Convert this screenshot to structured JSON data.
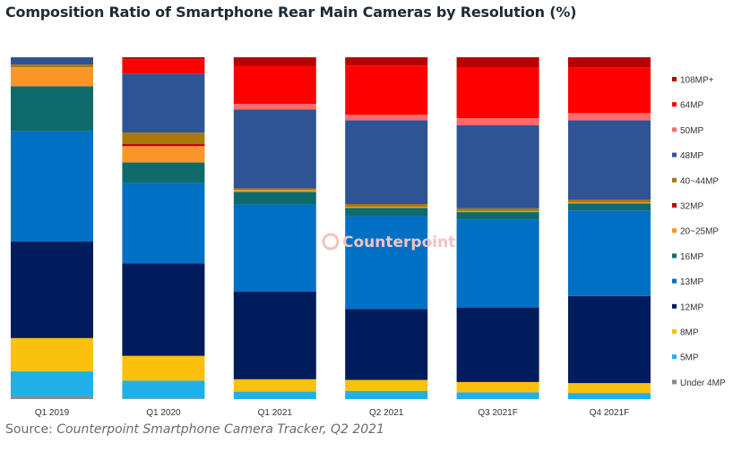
{
  "header": {
    "title": "Composition Ratio of Smartphone Rear Main Cameras by Resolution (%)"
  },
  "footer": {
    "source_prefix": "Source: ",
    "source_text": "Counterpoint Smartphone Camera Tracker, Q2 2021"
  },
  "watermark": {
    "text": "Counterpoint"
  },
  "chart_data": {
    "type": "bar",
    "stacked": true,
    "normalized_percent": true,
    "title": "Composition Ratio of Smartphone Rear Main Cameras by Resolution (%)",
    "xlabel": "",
    "ylabel": "",
    "ylim": [
      0,
      100
    ],
    "grid": false,
    "legend_position": "right",
    "categories": [
      "Q1 2019",
      "Q1 2020",
      "Q1 2021",
      "Q2 2021",
      "Q3 2021F",
      "Q4 2021F"
    ],
    "series": [
      {
        "name": "Under 4MP",
        "color": "#8c8c8c",
        "values": [
          0.8,
          0.2,
          0.0,
          0.0,
          0.0,
          0.0
        ]
      },
      {
        "name": "5MP",
        "color": "#1fb0e8",
        "values": [
          7.3,
          5.2,
          2.2,
          2.4,
          2.0,
          1.8
        ]
      },
      {
        "name": "8MP",
        "color": "#fcc10d",
        "values": [
          9.6,
          7.3,
          3.6,
          3.2,
          3.0,
          2.9
        ]
      },
      {
        "name": "12MP",
        "color": "#001c5c",
        "values": [
          28.0,
          27.2,
          25.6,
          20.7,
          21.8,
          25.6
        ]
      },
      {
        "name": "13MP",
        "color": "#0070c4",
        "values": [
          32.0,
          23.6,
          25.6,
          27.2,
          25.8,
          25.1
        ]
      },
      {
        "name": "16MP",
        "color": "#0f6b6b",
        "values": [
          13.1,
          6.0,
          3.6,
          2.4,
          2.1,
          2.1
        ]
      },
      {
        "name": "20~25MP",
        "color": "#f9962a",
        "values": [
          5.5,
          4.8,
          0.5,
          0.3,
          0.3,
          0.3
        ]
      },
      {
        "name": "32MP",
        "color": "#c00000",
        "values": [
          0.0,
          0.6,
          0.0,
          0.0,
          0.0,
          0.0
        ]
      },
      {
        "name": "40~44MP",
        "color": "#a87a0d",
        "values": [
          0.8,
          3.4,
          0.5,
          0.8,
          0.8,
          0.8
        ]
      },
      {
        "name": "48MP",
        "color": "#2e5496",
        "values": [
          2.1,
          17.3,
          23.0,
          24.5,
          24.3,
          23.3
        ]
      },
      {
        "name": "50MP",
        "color": "#ff6b6b",
        "values": [
          0.0,
          0.0,
          1.7,
          1.6,
          2.1,
          2.1
        ]
      },
      {
        "name": "64MP",
        "color": "#ff0000",
        "values": [
          0.0,
          4.2,
          11.0,
          14.4,
          14.7,
          13.3
        ]
      },
      {
        "name": "108MP+",
        "color": "#b80000",
        "values": [
          0.0,
          0.6,
          2.6,
          2.4,
          3.1,
          3.1
        ]
      }
    ]
  }
}
